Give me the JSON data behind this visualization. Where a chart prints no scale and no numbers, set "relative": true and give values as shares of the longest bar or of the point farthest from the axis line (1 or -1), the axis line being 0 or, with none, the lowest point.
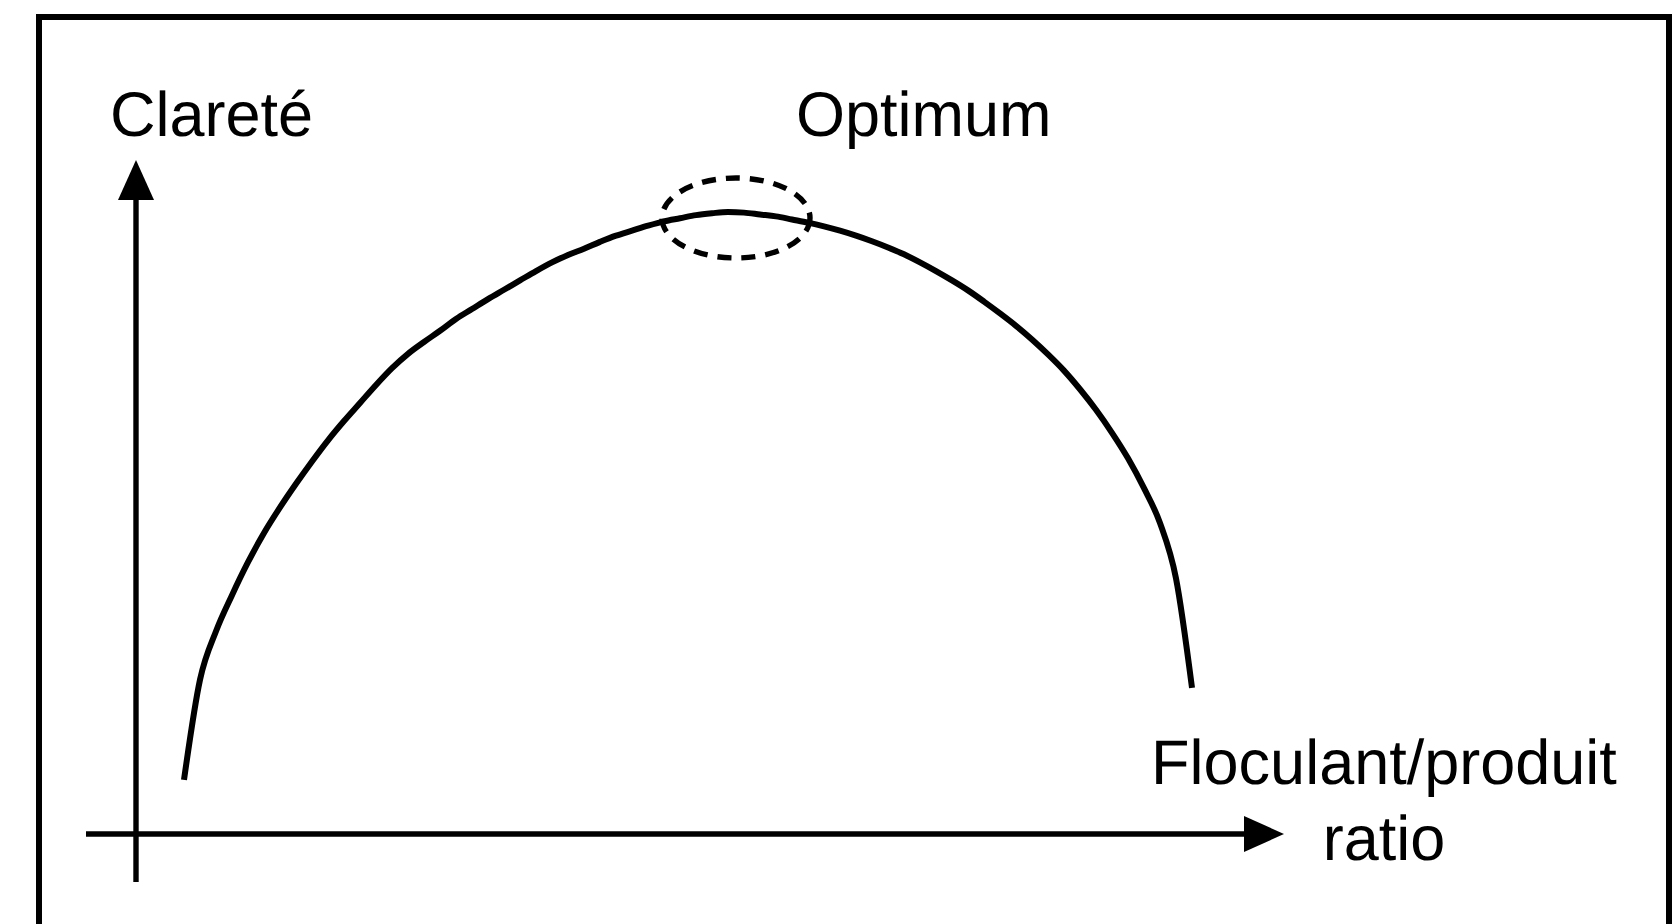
{
  "chart_data": {
    "type": "line",
    "ylabel": "Clareté",
    "xlabel": "Floculant/produit ratio",
    "annotations": [
      "Optimum"
    ],
    "relative": true,
    "line_style": "solid",
    "categories": [
      null,
      null,
      null,
      null,
      null,
      null,
      null,
      null,
      null,
      null,
      null,
      null,
      null,
      null,
      null,
      null,
      null,
      null,
      null,
      null,
      null,
      null,
      null,
      null,
      null,
      null,
      null,
      null,
      null,
      null,
      null,
      null,
      null,
      null,
      null,
      null,
      null,
      null,
      null,
      null,
      null,
      null,
      null,
      null,
      null,
      null,
      null,
      null,
      null,
      null,
      null,
      null,
      null,
      null,
      null,
      null,
      null,
      null,
      null,
      null,
      null,
      null,
      null,
      null
    ],
    "series": [
      {
        "color": "#000000",
        "values": [
          0.087,
          0.248,
          0.326,
          0.384,
          0.437,
          0.484,
          0.525,
          0.563,
          0.599,
          0.633,
          0.664,
          0.693,
          0.722,
          0.749,
          0.772,
          0.791,
          0.809,
          0.828,
          0.844,
          0.86,
          0.875,
          0.89,
          0.905,
          0.919,
          0.931,
          0.941,
          0.952,
          0.962,
          0.97,
          0.978,
          0.985,
          0.99,
          0.995,
          0.998,
          1.0,
          0.999,
          0.996,
          0.993,
          0.988,
          0.983,
          0.977,
          0.97,
          0.962,
          0.953,
          0.943,
          0.932,
          0.919,
          0.905,
          0.89,
          0.874,
          0.856,
          0.837,
          0.817,
          0.795,
          0.771,
          0.745,
          0.715,
          0.682,
          0.645,
          0.604,
          0.556,
          0.5,
          0.411,
          0.235
        ]
      }
    ]
  }
}
